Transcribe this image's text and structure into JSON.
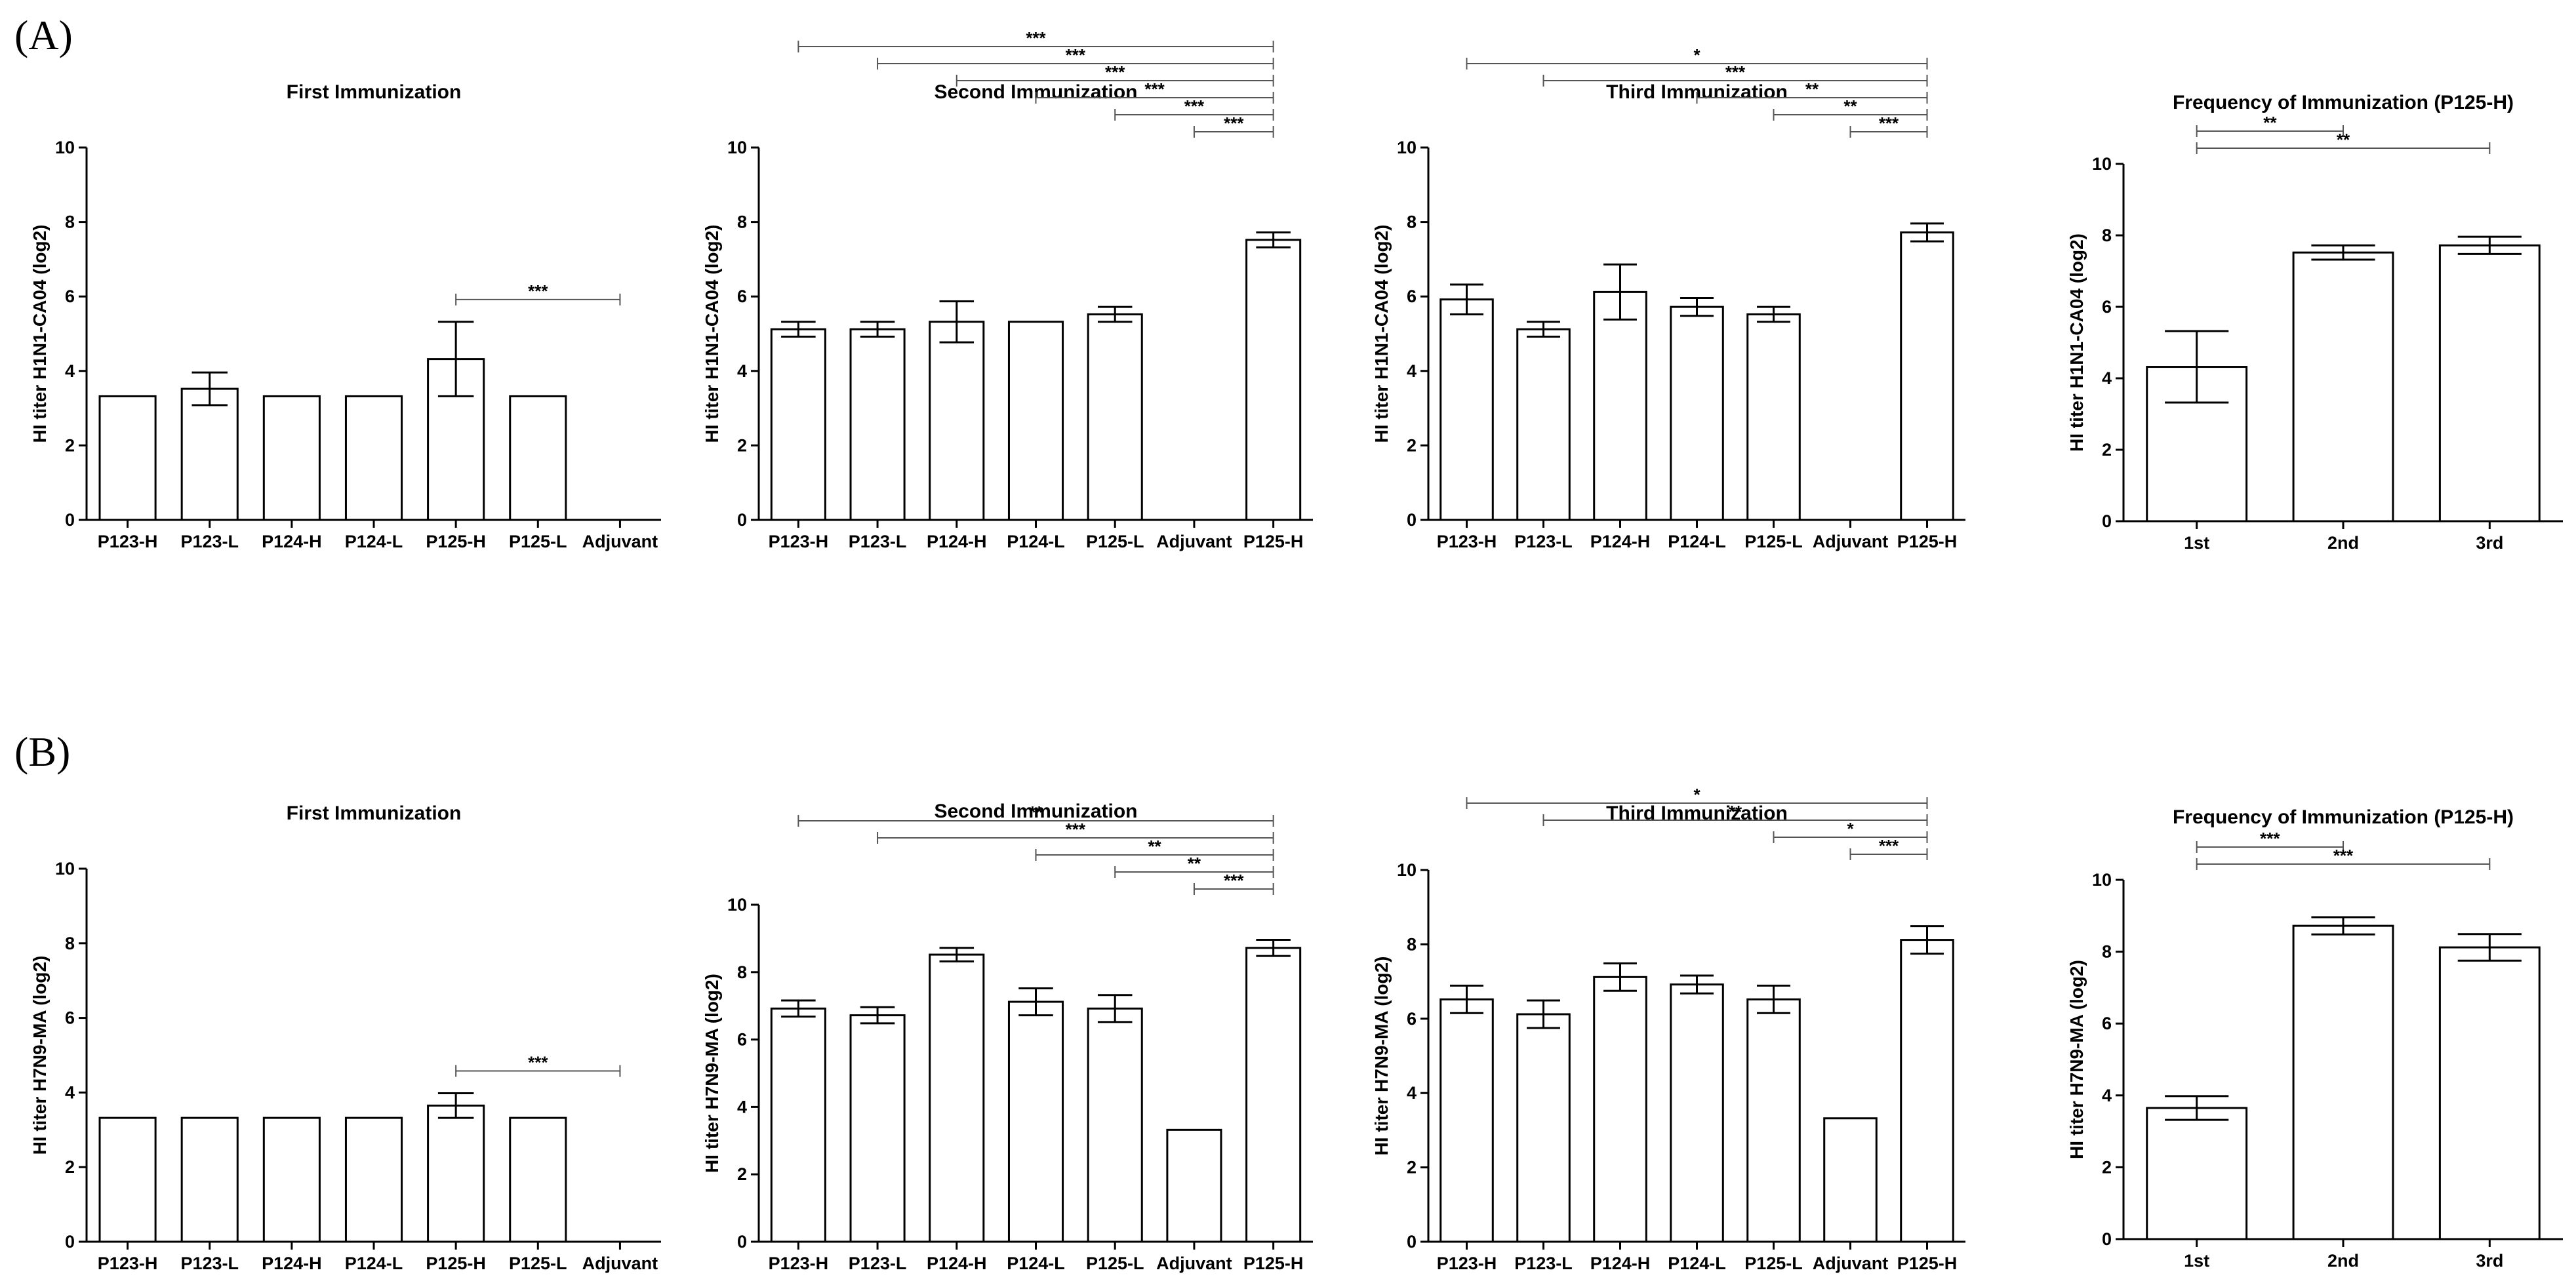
{
  "figure": {
    "panel_labels": [
      "(A)",
      "(B)"
    ]
  },
  "chart_data": [
    {
      "type": "bar",
      "row": "A",
      "col": 0,
      "title": "First Immunization",
      "ylabel": "HI titer H1N1-CA04 (log2)",
      "xlabel": "",
      "ylim": [
        0,
        10
      ],
      "yticks": [
        0,
        2,
        4,
        6,
        8,
        10
      ],
      "categories": [
        "P123-H",
        "P123-L",
        "P124-H",
        "P124-L",
        "P125-H",
        "P125-L",
        "Adjuvant"
      ],
      "values": [
        3.32,
        3.52,
        3.32,
        3.32,
        4.32,
        3.32,
        0
      ],
      "errors": [
        0,
        0.44,
        0,
        0,
        1.0,
        0,
        0
      ],
      "significance": [
        {
          "from": "P125-H",
          "to": "Adjuvant",
          "label": "***"
        }
      ]
    },
    {
      "type": "bar",
      "row": "A",
      "col": 1,
      "title": "Second Immunization",
      "ylabel": "HI titer H1N1-CA04 (log2)",
      "xlabel": "",
      "ylim": [
        0,
        10
      ],
      "yticks": [
        0,
        2,
        4,
        6,
        8,
        10
      ],
      "categories": [
        "P123-H",
        "P123-L",
        "P124-H",
        "P124-L",
        "P125-L",
        "Adjuvant",
        "P125-H"
      ],
      "values": [
        5.12,
        5.12,
        5.32,
        5.32,
        5.52,
        0,
        7.52
      ],
      "errors": [
        0.2,
        0.2,
        0.55,
        0,
        0.2,
        0,
        0.2
      ],
      "significance": [
        {
          "from": "P123-H",
          "to": "P125-H",
          "label": "***"
        },
        {
          "from": "P123-L",
          "to": "P125-H",
          "label": "***"
        },
        {
          "from": "P124-H",
          "to": "P125-H",
          "label": "***"
        },
        {
          "from": "P124-L",
          "to": "P125-H",
          "label": "***"
        },
        {
          "from": "P125-L",
          "to": "P125-H",
          "label": "***"
        },
        {
          "from": "Adjuvant",
          "to": "P125-H",
          "label": "***"
        }
      ]
    },
    {
      "type": "bar",
      "row": "A",
      "col": 2,
      "title": "Third Immunization",
      "ylabel": "HI titer H1N1-CA04 (log2)",
      "xlabel": "",
      "ylim": [
        0,
        10
      ],
      "yticks": [
        0,
        2,
        4,
        6,
        8,
        10
      ],
      "categories": [
        "P123-H",
        "P123-L",
        "P124-H",
        "P124-L",
        "P125-L",
        "Adjuvant",
        "P125-H"
      ],
      "values": [
        5.92,
        5.12,
        6.12,
        5.72,
        5.52,
        0,
        7.72
      ],
      "errors": [
        0.4,
        0.2,
        0.74,
        0.24,
        0.2,
        0,
        0.24
      ],
      "significance": [
        {
          "from": "P123-H",
          "to": "P125-H",
          "label": "*"
        },
        {
          "from": "P123-L",
          "to": "P125-H",
          "label": "***"
        },
        {
          "from": "P124-L",
          "to": "P125-H",
          "label": "**"
        },
        {
          "from": "P125-L",
          "to": "P125-H",
          "label": "**"
        },
        {
          "from": "Adjuvant",
          "to": "P125-H",
          "label": "***"
        }
      ]
    },
    {
      "type": "bar",
      "row": "A",
      "col": 3,
      "title": "Frequency of Immunization (P125-H)",
      "ylabel": "HI titer H1N1-CA04 (log2)",
      "xlabel": "",
      "ylim": [
        0,
        10
      ],
      "yticks": [
        0,
        2,
        4,
        6,
        8,
        10
      ],
      "categories": [
        "1st",
        "2nd",
        "3rd"
      ],
      "values": [
        4.32,
        7.52,
        7.72
      ],
      "errors": [
        1.0,
        0.2,
        0.24
      ],
      "significance": [
        {
          "from": "1st",
          "to": "2nd",
          "label": "**"
        },
        {
          "from": "1st",
          "to": "3rd",
          "label": "**"
        }
      ]
    },
    {
      "type": "bar",
      "row": "B",
      "col": 0,
      "title": "First Immunization",
      "ylabel": "HI titer H7N9-MA (log2)",
      "xlabel": "",
      "ylim": [
        0,
        10
      ],
      "yticks": [
        0,
        2,
        4,
        6,
        8,
        10
      ],
      "categories": [
        "P123-H",
        "P123-L",
        "P124-H",
        "P124-L",
        "P125-H",
        "P125-L",
        "Adjuvant"
      ],
      "values": [
        3.32,
        3.32,
        3.32,
        3.32,
        3.65,
        3.32,
        0
      ],
      "errors": [
        0,
        0,
        0,
        0,
        0.33,
        0,
        0
      ],
      "significance": [
        {
          "from": "P125-H",
          "to": "Adjuvant",
          "label": "***"
        }
      ]
    },
    {
      "type": "bar",
      "row": "B",
      "col": 1,
      "title": "Second Immunization",
      "ylabel": "HI titer H7N9-MA (log2)",
      "xlabel": "",
      "ylim": [
        0,
        10
      ],
      "yticks": [
        0,
        2,
        4,
        6,
        8,
        10
      ],
      "categories": [
        "P123-H",
        "P123-L",
        "P124-H",
        "P124-L",
        "P125-L",
        "Adjuvant",
        "P125-H"
      ],
      "values": [
        6.92,
        6.72,
        8.52,
        7.12,
        6.92,
        3.32,
        8.72
      ],
      "errors": [
        0.24,
        0.24,
        0.2,
        0.4,
        0.4,
        0,
        0.24
      ],
      "significance": [
        {
          "from": "P123-H",
          "to": "P125-H",
          "label": "**"
        },
        {
          "from": "P123-L",
          "to": "P125-H",
          "label": "***"
        },
        {
          "from": "P124-L",
          "to": "P125-H",
          "label": "**"
        },
        {
          "from": "P125-L",
          "to": "P125-H",
          "label": "**"
        },
        {
          "from": "Adjuvant",
          "to": "P125-H",
          "label": "***"
        }
      ]
    },
    {
      "type": "bar",
      "row": "B",
      "col": 2,
      "title": "Third Immunization",
      "ylabel": "HI titer H7N9-MA (log2)",
      "xlabel": "",
      "ylim": [
        0,
        10
      ],
      "yticks": [
        0,
        2,
        4,
        6,
        8,
        10
      ],
      "categories": [
        "P123-H",
        "P123-L",
        "P124-H",
        "P124-L",
        "P125-L",
        "Adjuvant",
        "P125-H"
      ],
      "values": [
        6.52,
        6.12,
        7.12,
        6.92,
        6.52,
        3.32,
        8.12
      ],
      "errors": [
        0.37,
        0.37,
        0.37,
        0.24,
        0.37,
        0,
        0.37
      ],
      "significance": [
        {
          "from": "P123-H",
          "to": "P125-H",
          "label": "*"
        },
        {
          "from": "P123-L",
          "to": "P125-H",
          "label": "**"
        },
        {
          "from": "P125-L",
          "to": "P125-H",
          "label": "*"
        },
        {
          "from": "Adjuvant",
          "to": "P125-H",
          "label": "***"
        }
      ]
    },
    {
      "type": "bar",
      "row": "B",
      "col": 3,
      "title": "Frequency of Immunization (P125-H)",
      "ylabel": "HI titer H7N9-MA (log2)",
      "xlabel": "",
      "ylim": [
        0,
        10
      ],
      "yticks": [
        0,
        2,
        4,
        6,
        8,
        10
      ],
      "categories": [
        "1st",
        "2nd",
        "3rd"
      ],
      "values": [
        3.65,
        8.72,
        8.12
      ],
      "errors": [
        0.33,
        0.24,
        0.37
      ],
      "significance": [
        {
          "from": "1st",
          "to": "2nd",
          "label": "***"
        },
        {
          "from": "1st",
          "to": "3rd",
          "label": "***"
        }
      ]
    }
  ]
}
